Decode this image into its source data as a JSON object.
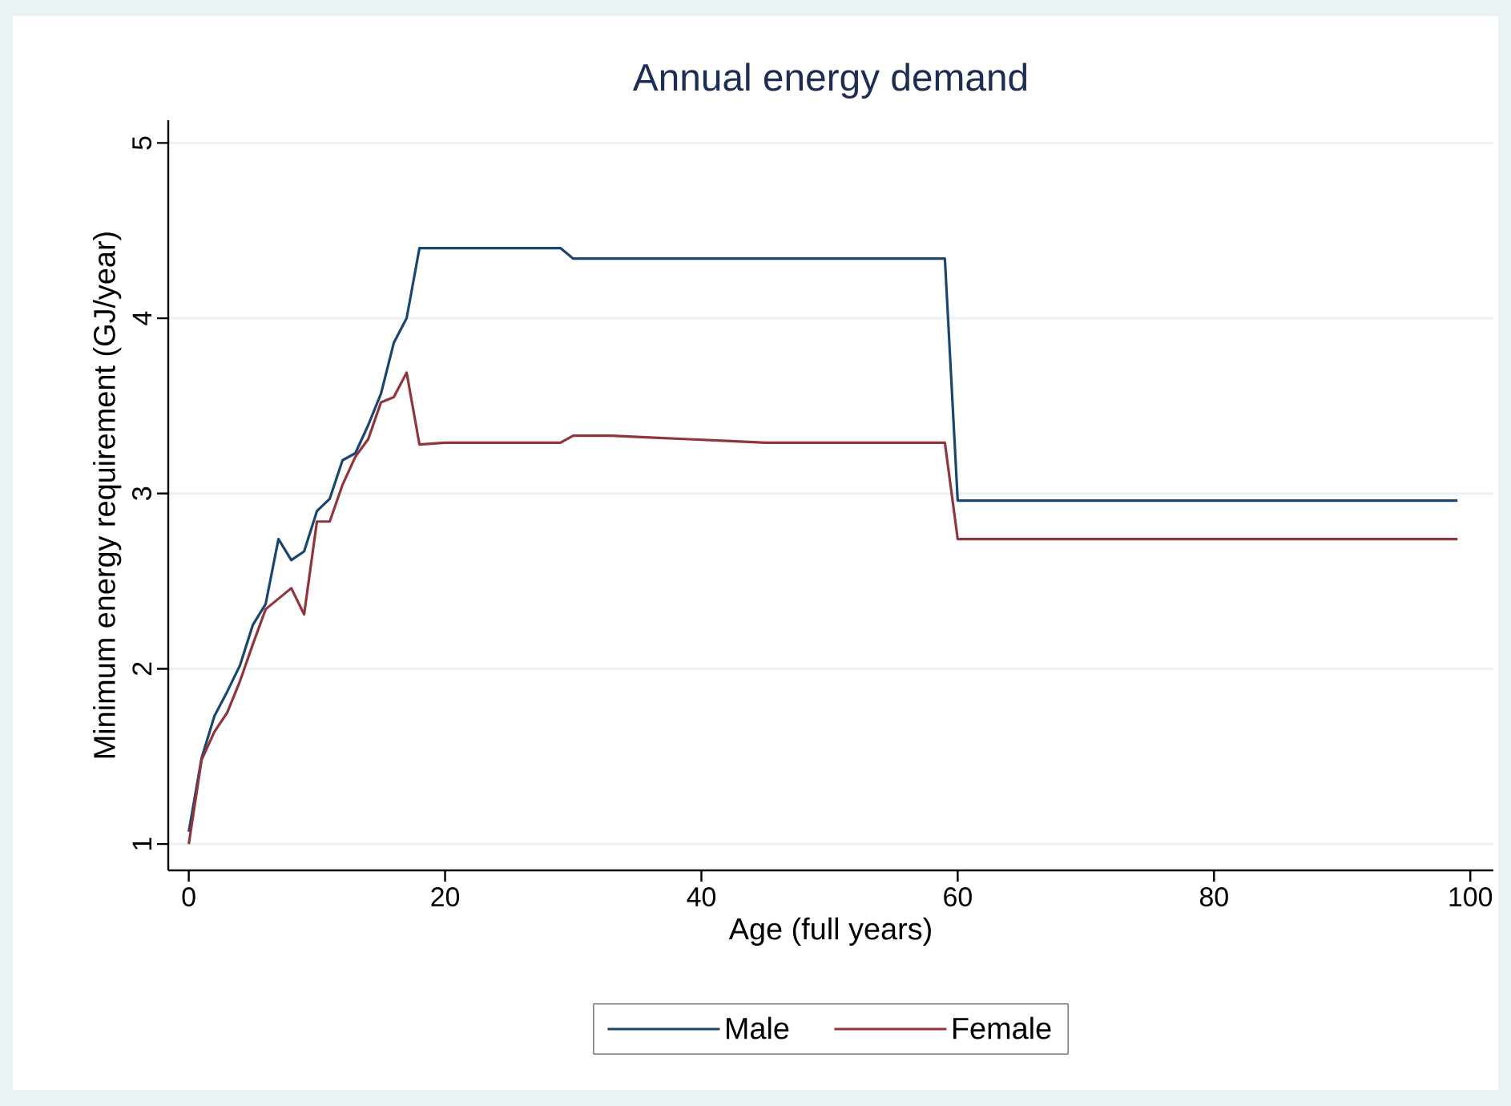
{
  "chart_data": {
    "type": "line",
    "title": "Annual energy demand",
    "xlabel": "Age (full years)",
    "ylabel": "Minimum energy requirement (GJ/year)",
    "xlim": [
      -1.6,
      101.8
    ],
    "ylim": [
      0.85,
      5.13
    ],
    "xticks": [
      0,
      20,
      40,
      60,
      80,
      100
    ],
    "yticks": [
      1,
      2,
      3,
      4,
      5
    ],
    "grid": "y",
    "legend": "bottom",
    "series": [
      {
        "name": "Male",
        "color": "#1a476f",
        "x": [
          0,
          1,
          2,
          3,
          4,
          5,
          6,
          7,
          8,
          9,
          10,
          11,
          12,
          13,
          14,
          15,
          16,
          17,
          18,
          29,
          30,
          59,
          60,
          99
        ],
        "values": [
          1.07,
          1.49,
          1.73,
          1.87,
          2.02,
          2.25,
          2.37,
          2.74,
          2.62,
          2.67,
          2.9,
          2.97,
          3.19,
          3.23,
          3.39,
          3.57,
          3.86,
          4.0,
          4.4,
          4.4,
          4.34,
          4.34,
          2.96,
          2.96
        ]
      },
      {
        "name": "Female",
        "color": "#90353b",
        "x": [
          0,
          1,
          2,
          3,
          4,
          5,
          6,
          7,
          8,
          9,
          10,
          11,
          12,
          13,
          14,
          15,
          16,
          17,
          18,
          20,
          29,
          30,
          33,
          36,
          39,
          42,
          45,
          59,
          60,
          99
        ],
        "values": [
          1.0,
          1.48,
          1.64,
          1.75,
          1.93,
          2.14,
          2.34,
          2.4,
          2.46,
          2.31,
          2.84,
          2.84,
          3.05,
          3.21,
          3.31,
          3.52,
          3.55,
          3.69,
          3.28,
          3.29,
          3.29,
          3.33,
          3.33,
          3.32,
          3.31,
          3.3,
          3.29,
          3.29,
          2.74,
          2.74
        ]
      }
    ]
  }
}
